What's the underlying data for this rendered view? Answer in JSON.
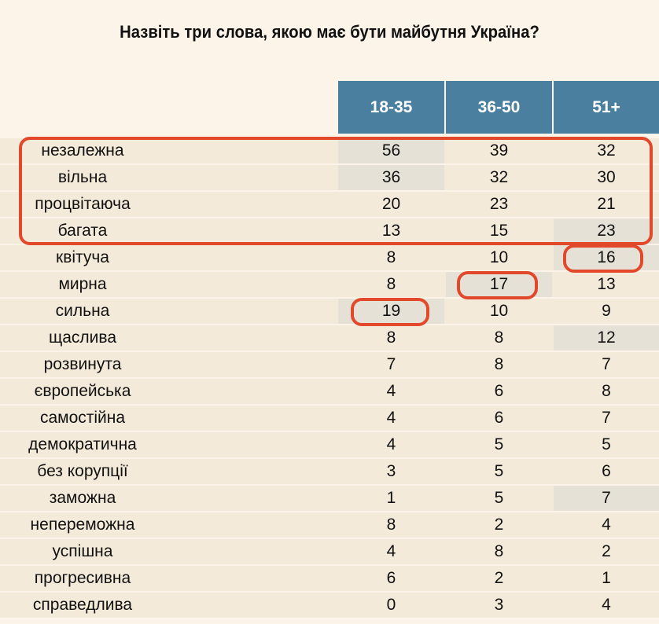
{
  "chart_data": {
    "type": "table",
    "title": "Назвіть три слова, якою має бути майбутня Україна?",
    "columns": [
      "18-35",
      "36-50",
      "51+"
    ],
    "rows": [
      {
        "label": "незалежна",
        "values": [
          56,
          39,
          32
        ],
        "shaded": [
          true,
          false,
          false
        ]
      },
      {
        "label": "вільна",
        "values": [
          36,
          32,
          30
        ],
        "shaded": [
          true,
          false,
          false
        ]
      },
      {
        "label": "процвітаюча",
        "values": [
          20,
          23,
          21
        ],
        "shaded": [
          false,
          false,
          false
        ]
      },
      {
        "label": "багата",
        "values": [
          13,
          15,
          23
        ],
        "shaded": [
          false,
          false,
          true
        ]
      },
      {
        "label": "квітуча",
        "values": [
          8,
          10,
          16
        ],
        "shaded": [
          false,
          false,
          true
        ]
      },
      {
        "label": "мирна",
        "values": [
          8,
          17,
          13
        ],
        "shaded": [
          false,
          true,
          false
        ]
      },
      {
        "label": "сильна",
        "values": [
          19,
          10,
          9
        ],
        "shaded": [
          true,
          false,
          false
        ]
      },
      {
        "label": "щаслива",
        "values": [
          8,
          8,
          12
        ],
        "shaded": [
          false,
          false,
          true
        ]
      },
      {
        "label": "розвинута",
        "values": [
          7,
          8,
          7
        ],
        "shaded": [
          false,
          false,
          false
        ]
      },
      {
        "label": "європейська",
        "values": [
          4,
          6,
          8
        ],
        "shaded": [
          false,
          false,
          false
        ]
      },
      {
        "label": "самостійна",
        "values": [
          4,
          6,
          7
        ],
        "shaded": [
          false,
          false,
          false
        ]
      },
      {
        "label": "демократична",
        "values": [
          4,
          5,
          5
        ],
        "shaded": [
          false,
          false,
          false
        ]
      },
      {
        "label": "без корупції",
        "values": [
          3,
          5,
          6
        ],
        "shaded": [
          false,
          false,
          false
        ]
      },
      {
        "label": "заможна",
        "values": [
          1,
          5,
          7
        ],
        "shaded": [
          false,
          false,
          true
        ]
      },
      {
        "label": "непереможна",
        "values": [
          8,
          2,
          4
        ],
        "shaded": [
          false,
          false,
          false
        ]
      },
      {
        "label": "успішна",
        "values": [
          4,
          8,
          2
        ],
        "shaded": [
          false,
          false,
          false
        ]
      },
      {
        "label": "прогресивна",
        "values": [
          6,
          2,
          1
        ],
        "shaded": [
          false,
          false,
          false
        ]
      },
      {
        "label": "справедлива",
        "values": [
          0,
          3,
          4
        ],
        "shaded": [
          false,
          false,
          false
        ]
      }
    ],
    "annotations": [
      {
        "type": "outline",
        "rows": [
          0,
          1,
          2,
          3
        ],
        "columns": "all"
      },
      {
        "type": "outline",
        "row": 4,
        "column": 2
      },
      {
        "type": "outline",
        "row": 5,
        "column": 1
      },
      {
        "type": "outline",
        "row": 6,
        "column": 0
      }
    ]
  },
  "colors": {
    "header": "#4a7fa0",
    "annotation": "#e2482a",
    "row": "#f4ead9",
    "shaded": "#e6e1d6"
  }
}
